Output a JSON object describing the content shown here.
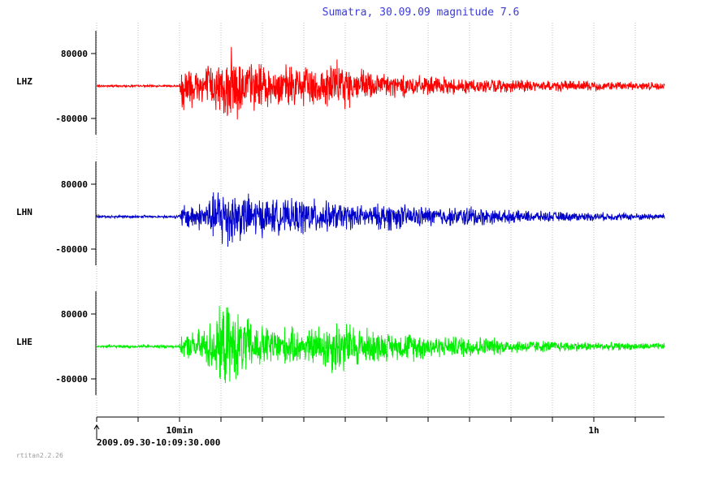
{
  "chart_data": {
    "type": "line",
    "title": "Sumatra, 30.09.09 magnitude 7.6",
    "x_axis": {
      "ticks": [
        {
          "label": "10min",
          "minutes": 10
        },
        {
          "label": "1h",
          "minutes": 60
        }
      ],
      "minor_tick_interval_minutes": 5,
      "range_minutes": [
        0,
        68.5
      ],
      "start_label": "2009.09.30-10:09:30.000",
      "grid": true
    },
    "y_tick_labels": [
      "80000",
      "-80000"
    ],
    "y_ticks": [
      80000,
      -80000
    ],
    "y_range": [
      -160000,
      160000
    ],
    "series": [
      {
        "name": "LHZ",
        "color": "#ff0000",
        "envelope_minutes": [
          0,
          10,
          10.3,
          12,
          15,
          16.5,
          18,
          22,
          27,
          29,
          30,
          32,
          35,
          40,
          45,
          50,
          55,
          60,
          65,
          68.5
        ],
        "envelope_amplitude": [
          3000,
          3000,
          75000,
          60000,
          70000,
          110000,
          75000,
          55000,
          62000,
          72000,
          62000,
          48000,
          38000,
          26000,
          22000,
          18000,
          16000,
          14000,
          12000,
          10000
        ]
      },
      {
        "name": "LHN",
        "color": "#0000cc",
        "envelope_minutes": [
          0,
          10,
          10.3,
          13,
          15.5,
          17,
          20,
          23,
          25,
          28,
          33,
          35,
          38,
          44,
          45,
          48,
          55,
          60,
          65,
          68.5
        ],
        "envelope_amplitude": [
          4000,
          4000,
          35000,
          40000,
          100000,
          70000,
          55000,
          45000,
          55000,
          42000,
          30000,
          42000,
          30000,
          25000,
          32000,
          20000,
          14000,
          12000,
          10000,
          9000
        ]
      },
      {
        "name": "LHE",
        "color": "#00ee00",
        "envelope_minutes": [
          0,
          10,
          10.3,
          13,
          15.5,
          17,
          20,
          23,
          25,
          29,
          32,
          36,
          38,
          42,
          45,
          50,
          55,
          60,
          65,
          68.5
        ],
        "envelope_amplitude": [
          4000,
          4000,
          30000,
          55000,
          120000,
          95000,
          60000,
          55000,
          45000,
          82000,
          55000,
          35000,
          42000,
          28000,
          32000,
          20000,
          16000,
          12000,
          10000,
          9000
        ]
      }
    ]
  },
  "footer": {
    "version": "rtitan2.2.26"
  }
}
